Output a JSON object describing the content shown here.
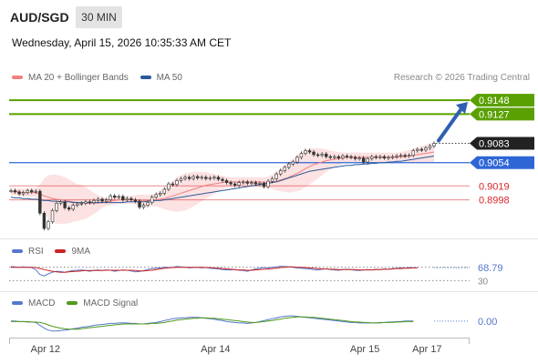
{
  "header": {
    "symbol": "AUD/SGD",
    "interval": "30 MIN",
    "datetime": "Wednesday, April 15, 2026 10:35:33 AM CET"
  },
  "credit": "Research © 2026 Trading Central",
  "chart_data": [
    {
      "type": "candlestick",
      "title": "",
      "legend": [
        {
          "label": "MA 20 + Bollinger Bands",
          "color": "#f08080"
        },
        {
          "label": "MA 50",
          "color": "#2a5a9a"
        }
      ],
      "legend_position": "top-left",
      "ylim": [
        0.894,
        0.917
      ],
      "grid": false,
      "x_ticks": [
        {
          "label": "Apr 12",
          "index": 7
        },
        {
          "label": "Apr 14",
          "index": 48
        },
        {
          "label": "Apr 15",
          "index": 84
        },
        {
          "label": "Apr 17",
          "index": 99
        }
      ],
      "last_price": {
        "label": "0.9083",
        "value": 0.9083
      },
      "levels": [
        {
          "label": "0.9148",
          "value": 0.9148,
          "color": "#5aa000",
          "type": "resistance"
        },
        {
          "label": "0.9127",
          "value": 0.9127,
          "color": "#5aa000",
          "type": "resistance"
        },
        {
          "label": "0.9054",
          "value": 0.9054,
          "color": "#2f66d6",
          "type": "pivot"
        },
        {
          "label": "0.9019",
          "value": 0.9019,
          "color": "#d9252a",
          "type": "support"
        },
        {
          "label": "0.8998",
          "value": 0.8998,
          "color": "#d9252a",
          "type": "support"
        }
      ],
      "close": [
        0.9012,
        0.901,
        0.9007,
        0.9009,
        0.9012,
        0.901,
        0.9011,
        0.8978,
        0.8955,
        0.8965,
        0.8982,
        0.8993,
        0.8995,
        0.8986,
        0.8984,
        0.899,
        0.8992,
        0.8993,
        0.8995,
        0.8994,
        0.8997,
        0.8999,
        0.8996,
        0.8998,
        0.9004,
        0.9002,
        0.9003,
        0.8998,
        0.9,
        0.8998,
        0.8996,
        0.8987,
        0.899,
        0.8994,
        0.9002,
        0.9006,
        0.9008,
        0.9014,
        0.9022,
        0.9021,
        0.9027,
        0.903,
        0.9032,
        0.903,
        0.9033,
        0.9031,
        0.9032,
        0.903,
        0.9031,
        0.9032,
        0.9029,
        0.9027,
        0.9024,
        0.9022,
        0.902,
        0.9024,
        0.9025,
        0.9023,
        0.9024,
        0.9022,
        0.9023,
        0.9018,
        0.9026,
        0.903,
        0.9037,
        0.9042,
        0.9047,
        0.9052,
        0.9055,
        0.9062,
        0.9068,
        0.9072,
        0.907,
        0.9066,
        0.9065,
        0.9067,
        0.9063,
        0.9062,
        0.9063,
        0.9061,
        0.9064,
        0.9063,
        0.9062,
        0.906,
        0.9061,
        0.9055,
        0.906,
        0.9063,
        0.9062,
        0.9063,
        0.9061,
        0.9062,
        0.9063,
        0.9064,
        0.9065,
        0.9064,
        0.9065,
        0.9072,
        0.9074,
        0.9073,
        0.9076,
        0.9079,
        0.9083
      ],
      "ma20": [
        0.901,
        0.901,
        0.901,
        0.9009,
        0.9009,
        0.9009,
        0.9009,
        0.9007,
        0.9004,
        0.9002,
        0.9,
        0.8999,
        0.8998,
        0.8997,
        0.8996,
        0.8995,
        0.8994,
        0.8994,
        0.8993,
        0.8993,
        0.8993,
        0.8993,
        0.8994,
        0.8995,
        0.8996,
        0.8997,
        0.8998,
        0.8998,
        0.8998,
        0.8998,
        0.8998,
        0.8997,
        0.8997,
        0.8997,
        0.8997,
        0.8998,
        0.8999,
        0.9,
        0.9002,
        0.9004,
        0.9006,
        0.9008,
        0.901,
        0.9012,
        0.9014,
        0.9016,
        0.9018,
        0.902,
        0.9021,
        0.9022,
        0.9023,
        0.9024,
        0.9025,
        0.9025,
        0.9025,
        0.9025,
        0.9025,
        0.9025,
        0.9025,
        0.9025,
        0.9025,
        0.9024,
        0.9024,
        0.9025,
        0.9026,
        0.9028,
        0.903,
        0.9032,
        0.9035,
        0.9038,
        0.9041,
        0.9045,
        0.9048,
        0.9051,
        0.9053,
        0.9055,
        0.9057,
        0.9058,
        0.9059,
        0.906,
        0.9061,
        0.9062,
        0.9062,
        0.9062,
        0.9062,
        0.9062,
        0.9062,
        0.9062,
        0.9062,
        0.9062,
        0.9062,
        0.9062,
        0.9062,
        0.9062,
        0.9063,
        0.9063,
        0.9064,
        0.9065,
        0.9066,
        0.9067,
        0.9068,
        0.9069,
        0.907
      ],
      "bollinger_width": [
        0.0005,
        0.0005,
        0.0005,
        0.0006,
        0.0006,
        0.0007,
        0.0007,
        0.0014,
        0.0026,
        0.0033,
        0.0036,
        0.0037,
        0.0036,
        0.0035,
        0.0033,
        0.003,
        0.0028,
        0.0026,
        0.0024,
        0.002,
        0.0016,
        0.0012,
        0.0008,
        0.0006,
        0.0006,
        0.0006,
        0.0006,
        0.0006,
        0.0006,
        0.0006,
        0.0007,
        0.0009,
        0.0009,
        0.0009,
        0.0009,
        0.001,
        0.0013,
        0.0016,
        0.002,
        0.0023,
        0.0026,
        0.0027,
        0.0028,
        0.0027,
        0.0026,
        0.0024,
        0.0022,
        0.002,
        0.0017,
        0.0015,
        0.0012,
        0.001,
        0.0008,
        0.0007,
        0.0007,
        0.0007,
        0.0007,
        0.0007,
        0.0007,
        0.0007,
        0.0007,
        0.0008,
        0.0009,
        0.0011,
        0.0014,
        0.0017,
        0.002,
        0.0023,
        0.0025,
        0.0027,
        0.0028,
        0.0028,
        0.0027,
        0.0025,
        0.0023,
        0.002,
        0.0017,
        0.0014,
        0.0012,
        0.001,
        0.0008,
        0.0007,
        0.0007,
        0.0007,
        0.0007,
        0.0007,
        0.0007,
        0.0007,
        0.0007,
        0.0007,
        0.0007,
        0.0007,
        0.0007,
        0.0007,
        0.0007,
        0.0008,
        0.0009,
        0.001,
        0.0011,
        0.0012,
        0.0013,
        0.0014,
        0.0015
      ],
      "ma50": [
        0.9002,
        0.9001,
        0.9001,
        0.9,
        0.9,
        0.8999,
        0.8999,
        0.8998,
        0.8997,
        0.8997,
        0.8996,
        0.8996,
        0.8995,
        0.8995,
        0.8995,
        0.8994,
        0.8994,
        0.8994,
        0.8994,
        0.8994,
        0.8994,
        0.8994,
        0.8994,
        0.8994,
        0.8994,
        0.8994,
        0.8994,
        0.8994,
        0.8995,
        0.8995,
        0.8995,
        0.8995,
        0.8995,
        0.8996,
        0.8996,
        0.8997,
        0.8997,
        0.8998,
        0.8999,
        0.9,
        0.9001,
        0.9002,
        0.9003,
        0.9004,
        0.9005,
        0.9006,
        0.9007,
        0.9008,
        0.9009,
        0.901,
        0.9011,
        0.9012,
        0.9013,
        0.9014,
        0.9015,
        0.9016,
        0.9017,
        0.9018,
        0.9019,
        0.902,
        0.9021,
        0.9022,
        0.9023,
        0.9024,
        0.9025,
        0.9027,
        0.9029,
        0.9031,
        0.9033,
        0.9035,
        0.9037,
        0.9039,
        0.9041,
        0.9042,
        0.9043,
        0.9044,
        0.9045,
        0.9046,
        0.9047,
        0.9048,
        0.9049,
        0.905,
        0.905,
        0.9051,
        0.9051,
        0.9052,
        0.9052,
        0.9053,
        0.9053,
        0.9054,
        0.9054,
        0.9055,
        0.9055,
        0.9056,
        0.9056,
        0.9057,
        0.9058,
        0.9059,
        0.906,
        0.9061,
        0.9062,
        0.9063,
        0.9064
      ]
    },
    {
      "type": "line",
      "title": "",
      "legend": [
        {
          "label": "RSI",
          "color": "#5577cc"
        },
        {
          "label": "9MA",
          "color": "#cc2222"
        }
      ],
      "ylim": [
        20,
        80
      ],
      "levels": [
        {
          "label": "70",
          "value": 70
        },
        {
          "label": "30",
          "value": 30
        }
      ],
      "last_value": {
        "label": "68.79",
        "value": 68.79
      },
      "series": [
        {
          "name": "RSI",
          "values": [
            72,
            71,
            70,
            71,
            70,
            69,
            62,
            48,
            44,
            50,
            55,
            58,
            57,
            55,
            58,
            60,
            61,
            62,
            60,
            58,
            61,
            62,
            60,
            62,
            61,
            58,
            60,
            62,
            61,
            59,
            56,
            57,
            60,
            63,
            66,
            67,
            68,
            70,
            69,
            70,
            72,
            71,
            70,
            68,
            69,
            70,
            68,
            69,
            67,
            66,
            65,
            63,
            62,
            62,
            63,
            61,
            60,
            58,
            62,
            65,
            67,
            69,
            68,
            70,
            71,
            73,
            72,
            71,
            70,
            68,
            67,
            66,
            65,
            63,
            62,
            64,
            65,
            63,
            62,
            61,
            63,
            64,
            63,
            61,
            60,
            62,
            63,
            62,
            64,
            63,
            65,
            64,
            66,
            67,
            68,
            67,
            69,
            68,
            68.79
          ]
        },
        {
          "name": "9MA",
          "values": [
            70,
            70,
            70,
            70,
            70,
            70,
            69,
            66,
            63,
            60,
            58,
            56,
            55,
            55,
            56,
            57,
            58,
            59,
            60,
            60,
            60,
            60,
            60,
            61,
            61,
            61,
            61,
            61,
            61,
            61,
            60,
            59,
            59,
            60,
            61,
            63,
            65,
            67,
            68,
            69,
            70,
            70,
            70,
            70,
            70,
            70,
            70,
            69,
            69,
            68,
            67,
            66,
            65,
            64,
            63,
            62,
            62,
            61,
            61,
            62,
            63,
            64,
            65,
            66,
            67,
            69,
            70,
            71,
            71,
            70,
            70,
            69,
            68,
            67,
            66,
            65,
            65,
            64,
            64,
            63,
            63,
            63,
            63,
            63,
            62,
            62,
            62,
            62,
            63,
            63,
            64,
            64,
            65,
            66,
            66,
            67,
            67,
            68,
            68
          ]
        }
      ]
    },
    {
      "type": "line",
      "title": "",
      "legend": [
        {
          "label": "MACD",
          "color": "#5577cc"
        },
        {
          "label": "MACD Signal",
          "color": "#4f9a1a"
        }
      ],
      "ylim": [
        -0.003,
        0.002
      ],
      "last_value": {
        "label": "0.00",
        "value": 0.0003
      },
      "series": [
        {
          "name": "MACD",
          "values": [
            0.0003,
            0.0003,
            0.0002,
            0.0002,
            0.0001,
            0.0001,
            0.0,
            -0.0006,
            -0.0012,
            -0.0016,
            -0.0018,
            -0.0018,
            -0.0017,
            -0.0016,
            -0.0015,
            -0.0013,
            -0.0012,
            -0.001,
            -0.0009,
            -0.0008,
            -0.0006,
            -0.0005,
            -0.0004,
            -0.0003,
            -0.0002,
            -0.0002,
            -0.0001,
            -0.0001,
            -0.0001,
            -0.0002,
            -0.0002,
            -0.0003,
            -0.0003,
            -0.0002,
            -0.0001,
            0.0,
            0.0002,
            0.0004,
            0.0006,
            0.0008,
            0.0009,
            0.001,
            0.001,
            0.0011,
            0.0011,
            0.0011,
            0.001,
            0.0009,
            0.0008,
            0.0007,
            0.0005,
            0.0004,
            0.0002,
            0.0001,
            0.0,
            -0.0001,
            -0.0001,
            -0.0002,
            -0.0001,
            0.0,
            0.0002,
            0.0004,
            0.0006,
            0.0008,
            0.001,
            0.0012,
            0.0013,
            0.0014,
            0.0014,
            0.0013,
            0.0012,
            0.0011,
            0.001,
            0.0009,
            0.0008,
            0.0007,
            0.0006,
            0.0005,
            0.0004,
            0.0003,
            0.0002,
            0.0001,
            0.0,
            0.0,
            -0.0001,
            -0.0001,
            -0.0001,
            -0.0001,
            -0.0001,
            0.0,
            0.0,
            0.0001,
            0.0001,
            0.0002,
            0.0002,
            0.0003,
            0.0003,
            0.0003
          ]
        },
        {
          "name": "MACD Signal",
          "values": [
            0.0002,
            0.0002,
            0.0002,
            0.0002,
            0.0002,
            0.0001,
            0.0001,
            0.0,
            -0.0002,
            -0.0005,
            -0.0008,
            -0.001,
            -0.0012,
            -0.0013,
            -0.0014,
            -0.0014,
            -0.0014,
            -0.0013,
            -0.0012,
            -0.0011,
            -0.001,
            -0.0009,
            -0.0008,
            -0.0007,
            -0.0006,
            -0.0005,
            -0.0004,
            -0.0003,
            -0.0003,
            -0.0003,
            -0.0003,
            -0.0003,
            -0.0003,
            -0.0003,
            -0.0002,
            -0.0002,
            -0.0001,
            0.0,
            0.0002,
            0.0003,
            0.0005,
            0.0006,
            0.0007,
            0.0008,
            0.0009,
            0.0009,
            0.001,
            0.001,
            0.0009,
            0.0009,
            0.0008,
            0.0007,
            0.0006,
            0.0005,
            0.0004,
            0.0003,
            0.0002,
            0.0001,
            0.0,
            0.0,
            0.0001,
            0.0002,
            0.0003,
            0.0004,
            0.0006,
            0.0007,
            0.0009,
            0.001,
            0.0011,
            0.0012,
            0.0012,
            0.0012,
            0.0011,
            0.0011,
            0.001,
            0.0009,
            0.0008,
            0.0007,
            0.0006,
            0.0005,
            0.0004,
            0.0003,
            0.0002,
            0.0001,
            0.0001,
            0.0,
            0.0,
            -0.0001,
            -0.0001,
            -0.0001,
            0.0,
            0.0,
            0.0,
            0.0001,
            0.0001,
            0.0002,
            0.0002,
            0.0002
          ]
        }
      ]
    }
  ]
}
